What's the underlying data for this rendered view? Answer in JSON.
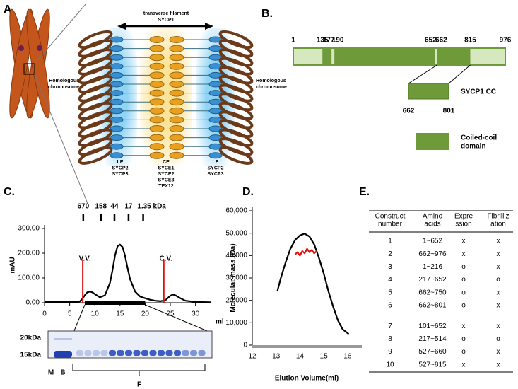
{
  "panel_a": {
    "label": "A.",
    "filament_label": "transverse filament",
    "filament_protein": "SYCP1",
    "left_chromosome": [
      "Homologous",
      "chromosome"
    ],
    "right_chromosome": [
      "Homologous",
      "chromosome"
    ],
    "le_left": [
      "LE",
      "SYCP2",
      "SYCP3"
    ],
    "ce": [
      "CE",
      "SYCE1",
      "SYCE2",
      "SYCE3",
      "TEX12"
    ],
    "le_right": [
      "LE",
      "SYCP2",
      "SYCP3"
    ]
  },
  "panel_b": {
    "label": "B.",
    "positions": [
      1,
      135,
      177,
      190,
      652,
      662,
      815,
      976
    ],
    "cc": {
      "label": "SYCP1 CC",
      "start": 662,
      "end": 801
    },
    "legend": [
      "Coiled-coil",
      "domain"
    ],
    "dark_color": "#6e9a3a",
    "light_color": "#d6e8bf"
  },
  "chart_data": [
    {
      "type": "line",
      "panel_label": "C.",
      "x_label": "ml",
      "y_label": "mAU",
      "xlim": [
        0,
        33
      ],
      "xticks": [
        0,
        5,
        10,
        15,
        20,
        25,
        30
      ],
      "ylim": [
        0,
        300
      ],
      "yticks": [
        {
          "value": 0,
          "label": "0.00"
        },
        {
          "value": 100,
          "label": "100.00"
        },
        {
          "value": 200,
          "label": "200.00"
        },
        {
          "value": 300,
          "label": "300.00"
        }
      ],
      "series": [
        {
          "color": "#000000",
          "x": [
            0,
            2,
            4,
            6,
            7,
            7.5,
            8,
            8.5,
            9,
            9.5,
            10,
            11,
            12,
            13,
            13.5,
            14,
            14.5,
            15,
            15.5,
            16,
            16.5,
            17,
            18,
            19,
            20,
            21,
            22,
            23,
            24,
            25,
            25.5,
            26,
            27,
            28,
            30,
            33
          ],
          "values": [
            3,
            3,
            3,
            4,
            5,
            15,
            30,
            42,
            45,
            42,
            35,
            22,
            30,
            80,
            130,
            190,
            228,
            235,
            225,
            190,
            140,
            95,
            45,
            25,
            18,
            12,
            8,
            6,
            10,
            28,
            33,
            30,
            18,
            8,
            3,
            2
          ]
        }
      ],
      "markers": [
        {
          "label": "V.V.",
          "x": 7.6
        },
        {
          "label": "C.V.",
          "x": 23.7
        }
      ],
      "marker_color": "#e01010",
      "standards": [
        {
          "label": "670",
          "x": 7.7
        },
        {
          "label": "158",
          "x": 11.2
        },
        {
          "label": "44",
          "x": 13.9
        },
        {
          "label": "17",
          "x": 16.7
        },
        {
          "label": "1.35 kDa",
          "x": 19.6
        }
      ],
      "fractions": [
        8,
        20
      ],
      "gel": {
        "markers": [
          "20kDa",
          "15kDa"
        ],
        "lanes": [
          "M",
          "B"
        ],
        "fraction_label": "F"
      }
    },
    {
      "type": "line",
      "panel_label": "D.",
      "x_label": "Elution Volume(ml)",
      "y_label": "Molecular mass (Da)",
      "xlim": [
        12,
        16.6
      ],
      "xticks": [
        12,
        13,
        14,
        15,
        16
      ],
      "ylim": [
        0,
        60000
      ],
      "yticks": [
        0,
        {
          "value": 10000,
          "label": "10,000"
        },
        {
          "value": 20000,
          "label": "20,000"
        },
        {
          "value": 30000,
          "label": "30,000"
        },
        {
          "value": 40000,
          "label": "40,000"
        },
        {
          "value": 50000,
          "label": "50,000"
        },
        {
          "value": 60000,
          "label": "60,000"
        }
      ],
      "series": [
        {
          "color": "#000000",
          "x": [
            13.05,
            13.2,
            13.4,
            13.6,
            13.8,
            14.0,
            14.2,
            14.4,
            14.6,
            14.8,
            15.0,
            15.2,
            15.4,
            15.6,
            15.8,
            16.05
          ],
          "values": [
            24000,
            30000,
            37000,
            43000,
            47000,
            49000,
            49800,
            48500,
            45000,
            39000,
            32000,
            24000,
            17000,
            11000,
            7000,
            5000
          ]
        },
        {
          "color": "#e01010",
          "x": [
            13.8,
            13.9,
            14.0,
            14.1,
            14.2,
            14.3,
            14.4,
            14.5,
            14.6,
            14.7
          ],
          "values": [
            40500,
            41500,
            40000,
            42000,
            41000,
            43000,
            41500,
            42500,
            41000,
            42000
          ]
        }
      ]
    }
  ],
  "table": {
    "label": "E.",
    "header": [
      [
        "Construct",
        "number"
      ],
      [
        "Amino",
        "acids"
      ],
      [
        "Expre",
        "ssion"
      ],
      [
        "Fibrilliz",
        "ation"
      ]
    ],
    "rows": [
      [
        "1",
        "1~652",
        "x",
        "x"
      ],
      [
        "2",
        "662~976",
        "x",
        "x"
      ],
      [
        "3",
        "1~216",
        "o",
        "x"
      ],
      [
        "4",
        "217~652",
        "o",
        "o"
      ],
      [
        "5",
        "662~750",
        "o",
        "x"
      ],
      [
        "6",
        "662~801",
        "o",
        "x"
      ],
      [
        "7",
        "101~652",
        "x",
        "x"
      ],
      [
        "8",
        "217~514",
        "o",
        "o"
      ],
      [
        "9",
        "527~660",
        "o",
        "x"
      ],
      [
        "10",
        "527~815",
        "x",
        "x"
      ]
    ]
  }
}
